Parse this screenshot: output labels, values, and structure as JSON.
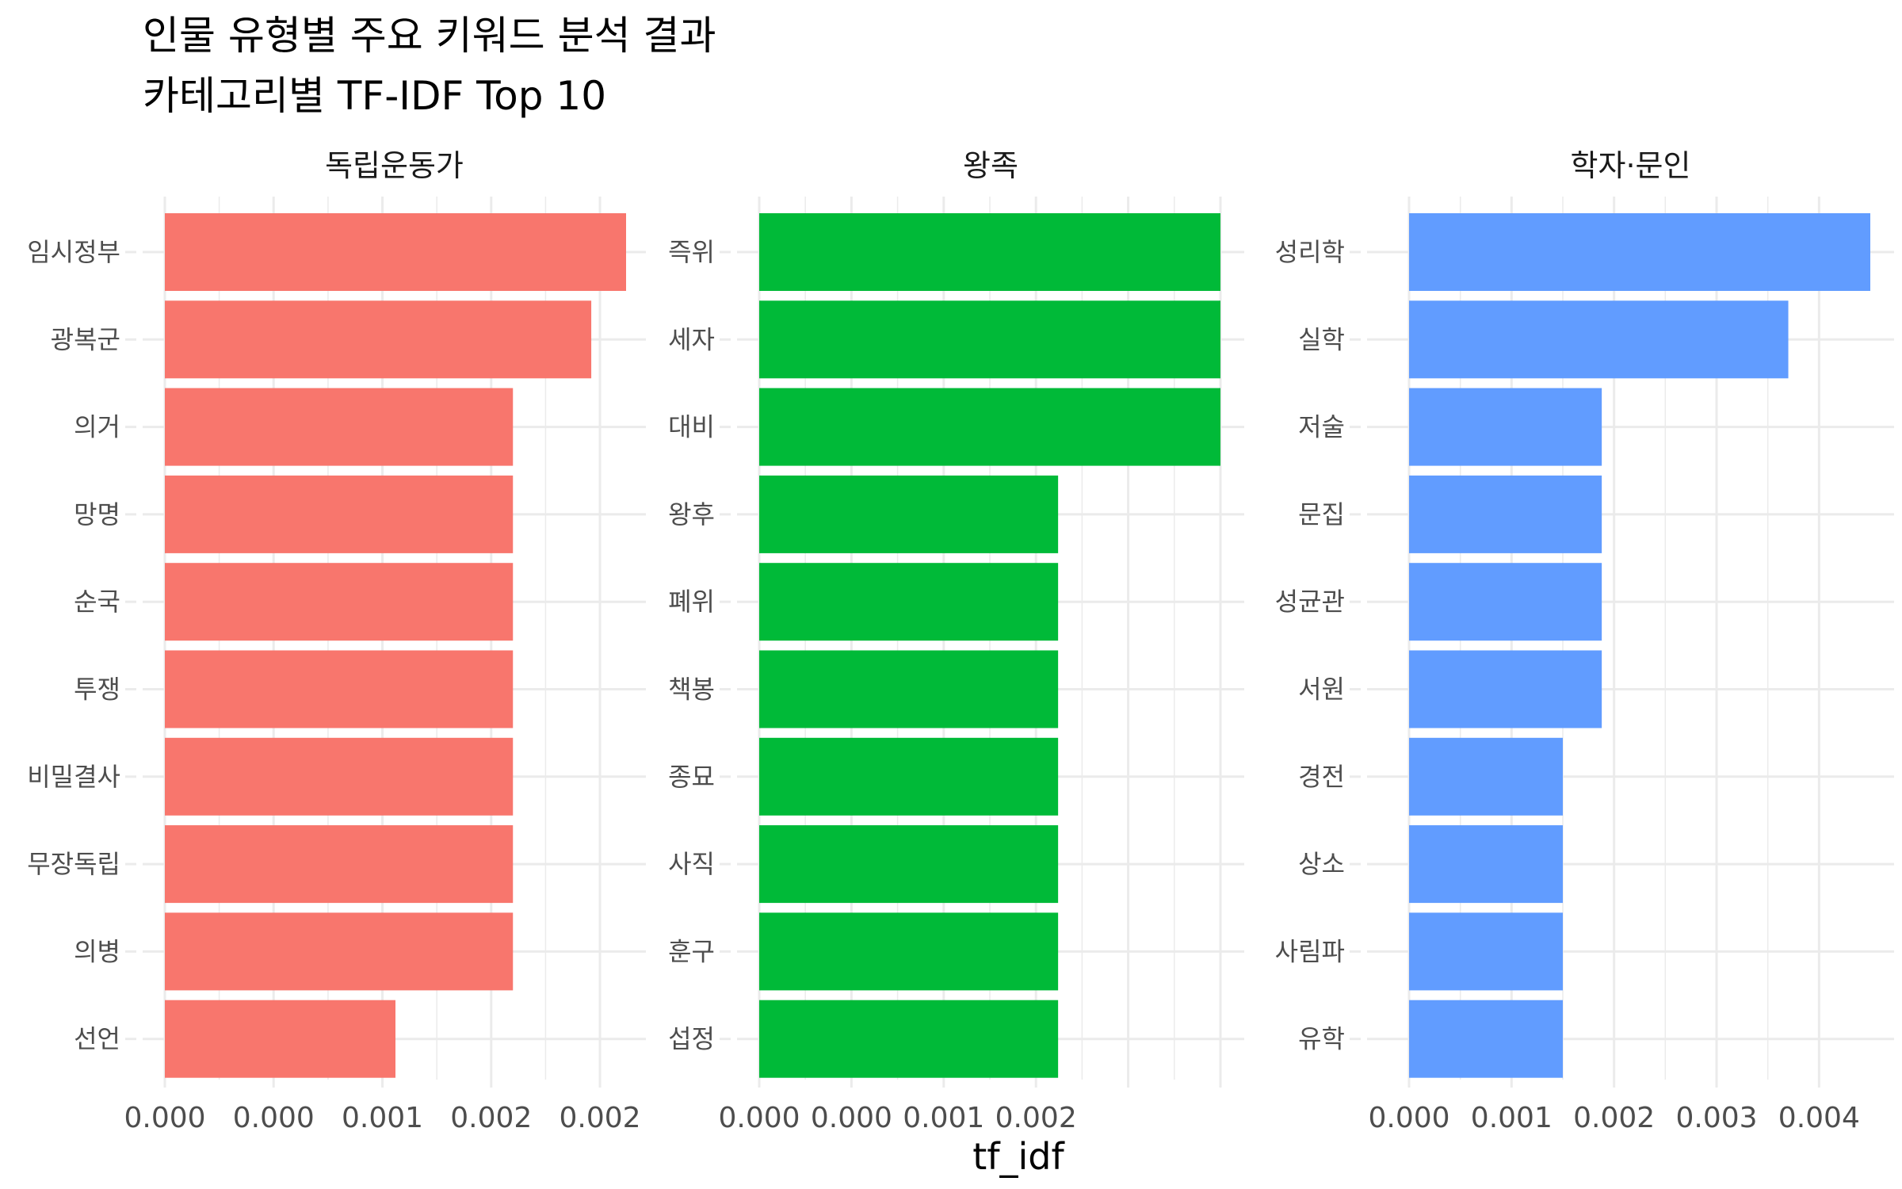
{
  "page": {
    "title": "인물 유형별 주요 키워드 분석 결과",
    "subtitle": "카테고리별 TF-IDF Top 10"
  },
  "chart_data": {
    "type": "bar",
    "orientation": "horizontal",
    "title": "인물 유형별 주요 키워드 분석 결과",
    "subtitle": "카테고리별 TF-IDF Top 10",
    "xlabel": "tf_idf",
    "ylabel": "",
    "grid": true,
    "legend": "none",
    "panels": [
      {
        "name": "독립운동가",
        "color": "#F8766D",
        "xlim": [
          0,
          0.00212
        ],
        "xticks": [
          0,
          0.0005,
          0.001,
          0.0015,
          0.002
        ],
        "xtick_labels": [
          "0.000",
          "0.000",
          "0.001",
          "0.002",
          "0.002"
        ],
        "categories": [
          "임시정부",
          "광복군",
          "의거",
          "망명",
          "순국",
          "투쟁",
          "비밀결사",
          "무장독립",
          "의병",
          "선언"
        ],
        "values": [
          0.00212,
          0.00196,
          0.0016,
          0.0016,
          0.0016,
          0.0016,
          0.0016,
          0.0016,
          0.0016,
          0.00106
        ]
      },
      {
        "name": "왕족",
        "color": "#00BA38",
        "xlim": [
          0,
          0.0025
        ],
        "xticks": [
          0,
          0.0005,
          0.001,
          0.0015,
          0.002,
          0.0025
        ],
        "xtick_labels": [
          "0.000",
          "0.000",
          "0.001",
          "0.002",
          "",
          ""
        ],
        "categories": [
          "즉위",
          "세자",
          "대비",
          "왕후",
          "폐위",
          "책봉",
          "종묘",
          "사직",
          "훈구",
          "섭정"
        ],
        "values": [
          0.0025,
          0.0025,
          0.0025,
          0.00162,
          0.00162,
          0.00162,
          0.00162,
          0.00162,
          0.00162,
          0.00162
        ]
      },
      {
        "name": "학자·문인",
        "color": "#619CFF",
        "xlim": [
          0,
          0.0045
        ],
        "xticks": [
          0,
          0.001,
          0.002,
          0.003,
          0.004
        ],
        "xtick_labels": [
          "0.000",
          "0.001",
          "0.002",
          "0.003",
          "0.004"
        ],
        "categories": [
          "성리학",
          "실학",
          "저술",
          "문집",
          "성균관",
          "서원",
          "경전",
          "상소",
          "사림파",
          "유학"
        ],
        "values": [
          0.0045,
          0.0037,
          0.00188,
          0.00188,
          0.00188,
          0.00188,
          0.0015,
          0.0015,
          0.0015,
          0.0015
        ]
      }
    ]
  }
}
